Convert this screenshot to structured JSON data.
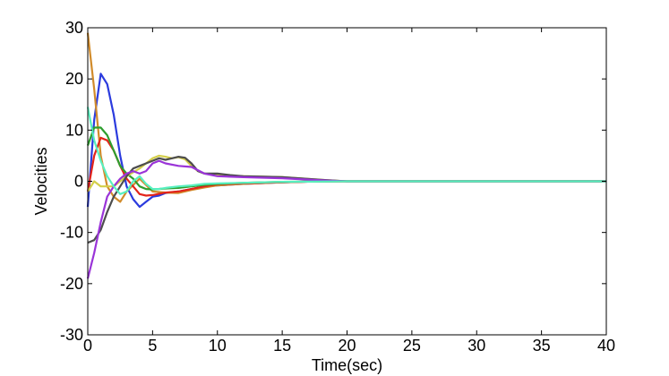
{
  "chart_data": {
    "type": "line",
    "title": "",
    "xlabel": "Time(sec)",
    "ylabel": "Velocities",
    "xlim": [
      0,
      40
    ],
    "ylim": [
      -30,
      30
    ],
    "xticks": [
      0,
      5,
      10,
      15,
      20,
      25,
      30,
      35,
      40
    ],
    "yticks": [
      -30,
      -20,
      -10,
      0,
      10,
      20,
      30
    ],
    "grid": false,
    "series": [
      {
        "color": "#2b3bde",
        "points": [
          [
            0,
            -5
          ],
          [
            0.5,
            12
          ],
          [
            1,
            21
          ],
          [
            1.5,
            19
          ],
          [
            2,
            13
          ],
          [
            2.5,
            5
          ],
          [
            3,
            -1
          ],
          [
            3.5,
            -3.5
          ],
          [
            4,
            -5
          ],
          [
            4.5,
            -4
          ],
          [
            5,
            -3
          ],
          [
            5.5,
            -2.8
          ],
          [
            6,
            -2.3
          ],
          [
            7,
            -2
          ],
          [
            8,
            -1.5
          ],
          [
            9,
            -1
          ],
          [
            10,
            -0.8
          ],
          [
            12,
            -0.5
          ],
          [
            15,
            -0.2
          ],
          [
            18,
            0
          ],
          [
            20,
            0
          ],
          [
            40,
            0
          ]
        ]
      },
      {
        "color": "#d18b2b",
        "points": [
          [
            0,
            29
          ],
          [
            0.5,
            18
          ],
          [
            1,
            5
          ],
          [
            1.5,
            -1
          ],
          [
            2,
            -3
          ],
          [
            2.5,
            -4
          ],
          [
            3,
            -2
          ],
          [
            4,
            0.5
          ],
          [
            5,
            -2
          ],
          [
            6,
            -2.2
          ],
          [
            7,
            -2.3
          ],
          [
            8,
            -1.7
          ],
          [
            9,
            -1.2
          ],
          [
            10,
            -0.8
          ],
          [
            12,
            -0.5
          ],
          [
            15,
            -0.2
          ],
          [
            18,
            0
          ],
          [
            20,
            0
          ],
          [
            40,
            0
          ]
        ]
      },
      {
        "color": "#e3241a",
        "points": [
          [
            0,
            -2
          ],
          [
            0.5,
            5
          ],
          [
            1,
            8.5
          ],
          [
            1.5,
            8
          ],
          [
            2,
            6
          ],
          [
            2.5,
            3
          ],
          [
            3,
            0.5
          ],
          [
            3.5,
            -1
          ],
          [
            4,
            -2.5
          ],
          [
            4.5,
            -2.8
          ],
          [
            5,
            -2.7
          ],
          [
            6,
            -2.2
          ],
          [
            7,
            -2
          ],
          [
            8,
            -1.5
          ],
          [
            9,
            -1
          ],
          [
            10,
            -0.6
          ],
          [
            12,
            -0.4
          ],
          [
            15,
            -0.2
          ],
          [
            18,
            0
          ],
          [
            20,
            0
          ],
          [
            40,
            0
          ]
        ]
      },
      {
        "color": "#2e9e2e",
        "points": [
          [
            0,
            7
          ],
          [
            0.5,
            10.5
          ],
          [
            1,
            10.5
          ],
          [
            1.5,
            9
          ],
          [
            2,
            6
          ],
          [
            2.5,
            3
          ],
          [
            3,
            1.5
          ],
          [
            3.5,
            0.5
          ],
          [
            4,
            -1
          ],
          [
            4.5,
            -1.5
          ],
          [
            5,
            -1.6
          ],
          [
            6,
            -1.4
          ],
          [
            7,
            -1.3
          ],
          [
            8,
            -1
          ],
          [
            9,
            -0.7
          ],
          [
            10,
            -0.5
          ],
          [
            12,
            -0.3
          ],
          [
            15,
            -0.1
          ],
          [
            20,
            0
          ],
          [
            40,
            0
          ]
        ]
      },
      {
        "color": "#d4cf4a",
        "points": [
          [
            0,
            -2
          ],
          [
            0.5,
            0
          ],
          [
            1,
            -1
          ],
          [
            2,
            -1
          ],
          [
            3,
            1
          ],
          [
            4,
            2.5
          ],
          [
            4.5,
            3.5
          ],
          [
            5,
            4.5
          ],
          [
            5.5,
            5
          ],
          [
            6,
            4.8
          ],
          [
            6.5,
            4.5
          ],
          [
            7,
            4.7
          ],
          [
            7.5,
            4.3
          ],
          [
            8,
            3
          ],
          [
            8.5,
            2
          ],
          [
            9,
            1.5
          ],
          [
            10,
            1.2
          ],
          [
            12,
            1
          ],
          [
            15,
            0.8
          ],
          [
            18,
            0.3
          ],
          [
            20,
            0
          ],
          [
            40,
            0
          ]
        ]
      },
      {
        "color": "#4d4d4d",
        "points": [
          [
            0,
            -12
          ],
          [
            0.5,
            -11.5
          ],
          [
            1,
            -9.5
          ],
          [
            1.5,
            -6
          ],
          [
            2,
            -3
          ],
          [
            2.5,
            -1
          ],
          [
            3,
            1
          ],
          [
            3.5,
            2.5
          ],
          [
            4,
            3
          ],
          [
            4.5,
            3.5
          ],
          [
            5,
            4
          ],
          [
            5.5,
            4.5
          ],
          [
            6,
            4.2
          ],
          [
            6.5,
            4.5
          ],
          [
            7,
            4.8
          ],
          [
            7.5,
            4.6
          ],
          [
            8,
            3.5
          ],
          [
            8.5,
            2
          ],
          [
            9,
            1.5
          ],
          [
            10,
            1.5
          ],
          [
            11,
            1.2
          ],
          [
            12,
            1
          ],
          [
            15,
            0.8
          ],
          [
            18,
            0.3
          ],
          [
            20,
            0
          ],
          [
            40,
            0
          ]
        ]
      },
      {
        "color": "#9a34d8",
        "points": [
          [
            0,
            -19
          ],
          [
            0.5,
            -14
          ],
          [
            1,
            -8
          ],
          [
            1.5,
            -3
          ],
          [
            2,
            -1
          ],
          [
            2.5,
            0.5
          ],
          [
            3,
            1.5
          ],
          [
            3.5,
            2
          ],
          [
            4,
            1.5
          ],
          [
            4.5,
            2
          ],
          [
            5,
            3.5
          ],
          [
            5.5,
            4
          ],
          [
            6,
            3.5
          ],
          [
            7,
            3
          ],
          [
            8,
            2.8
          ],
          [
            9,
            1.5
          ],
          [
            10,
            1
          ],
          [
            12,
            0.8
          ],
          [
            15,
            0.6
          ],
          [
            18,
            0.2
          ],
          [
            20,
            0
          ],
          [
            40,
            0
          ]
        ]
      },
      {
        "color": "#58f0c0",
        "points": [
          [
            0,
            14.5
          ],
          [
            0.5,
            8
          ],
          [
            1,
            4
          ],
          [
            1.5,
            1
          ],
          [
            2,
            -1
          ],
          [
            2.5,
            -2.5
          ],
          [
            3,
            -2
          ],
          [
            3.5,
            0
          ],
          [
            4,
            1
          ],
          [
            4.5,
            -0.5
          ],
          [
            5,
            -1.5
          ],
          [
            5.5,
            -1.5
          ],
          [
            6,
            -1.3
          ],
          [
            7,
            -1
          ],
          [
            8,
            -0.8
          ],
          [
            9,
            -0.5
          ],
          [
            10,
            -0.4
          ],
          [
            12,
            -0.3
          ],
          [
            15,
            -0.1
          ],
          [
            20,
            0
          ],
          [
            40,
            0
          ]
        ]
      }
    ]
  }
}
